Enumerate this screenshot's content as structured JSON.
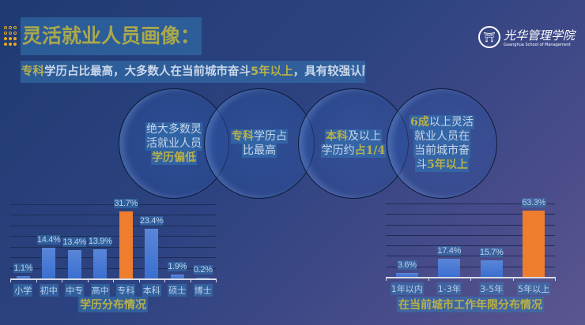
{
  "header": {
    "title": "灵活就业人员画像：",
    "subtitle": [
      {
        "t": "专科",
        "h": true
      },
      {
        "t": "学历占比最高，大多数人在当前城市奋斗",
        "h": false
      },
      {
        "t": "5年以上",
        "h": true
      },
      {
        "t": "，具有较强认同感",
        "h": false
      }
    ]
  },
  "logo": {
    "cn": "光华管理学院",
    "en": "Guanghua School of Management"
  },
  "circles": [
    [
      [
        {
          "t": "绝大多数灵",
          "h": false
        }
      ],
      [
        {
          "t": "活就业人员",
          "h": false
        }
      ],
      [
        {
          "t": "学历偏低",
          "h": true
        }
      ]
    ],
    [
      [
        {
          "t": "专科",
          "h": true
        },
        {
          "t": "学历占",
          "h": false
        }
      ],
      [
        {
          "t": "比最高",
          "h": false
        }
      ]
    ],
    [
      [
        {
          "t": "本科",
          "h": true
        },
        {
          "t": "及以上",
          "h": false
        }
      ],
      [
        {
          "t": "学历约",
          "h": false
        },
        {
          "t": "占1/4",
          "h": true
        }
      ]
    ],
    [
      [
        {
          "t": "6成",
          "h": true
        },
        {
          "t": "以上灵活",
          "h": false
        }
      ],
      [
        {
          "t": "就业人员在",
          "h": false
        }
      ],
      [
        {
          "t": "当前城市奋",
          "h": false
        }
      ],
      [
        {
          "t": "斗",
          "h": false
        },
        {
          "t": "5年以上",
          "h": true
        }
      ]
    ]
  ],
  "chart_data": [
    {
      "type": "bar",
      "title": "学历分布情况",
      "categories": [
        "小学",
        "初中",
        "中专",
        "高中",
        "专科",
        "本科",
        "硕士",
        "博士"
      ],
      "values": [
        1.1,
        14.4,
        13.4,
        13.9,
        31.7,
        23.4,
        1.9,
        0.2
      ],
      "labels": [
        "1.1%",
        "14.4%",
        "13.4%",
        "13.9%",
        "31.7%",
        "23.4%",
        "1.9%",
        "0.2%"
      ],
      "highlight": "专科",
      "ylim": [
        0,
        35
      ],
      "grid": true,
      "colors": {
        "bar": "#3a6fd0",
        "highlight": "#ee7d2e"
      }
    },
    {
      "type": "bar",
      "title": "在当前城市工作年限分布情况",
      "categories": [
        "1年以内",
        "1-3年",
        "3-5年",
        "5年以上"
      ],
      "values": [
        3.6,
        17.4,
        15.7,
        63.3
      ],
      "labels": [
        "3.6%",
        "17.4%",
        "15.7%",
        "63.3%"
      ],
      "highlight": "5年以上",
      "ylim": [
        0,
        70
      ],
      "grid": true,
      "colors": {
        "bar": "#3a6fd0",
        "highlight": "#ee7d2e"
      }
    }
  ]
}
